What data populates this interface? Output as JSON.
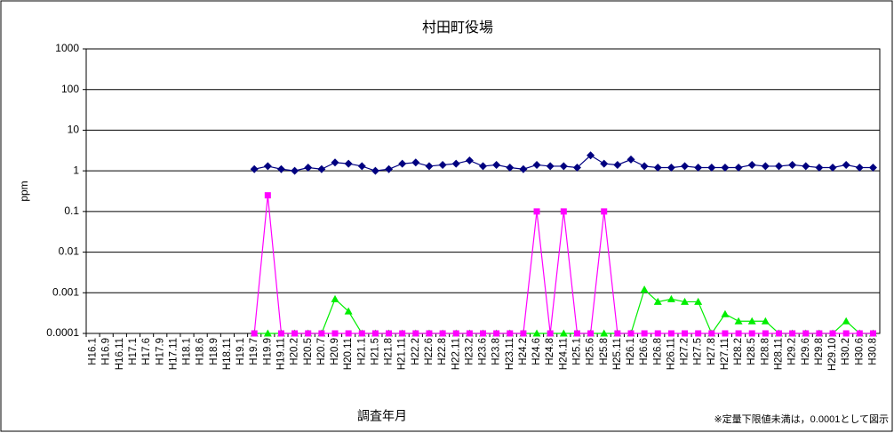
{
  "chart_data": {
    "type": "line",
    "title": "村田町役場",
    "y_label": "ppm",
    "x_label": "調査年月",
    "note": "※定量下限値未満は，0.0001として図示",
    "log_scale": true,
    "grid": true,
    "categories": [
      "H16.1",
      "H16.9",
      "H16.11",
      "H17.1",
      "H17.6",
      "H17.9",
      "H17.11",
      "H18.1",
      "H18.6",
      "H18.9",
      "H18.11",
      "H19.1",
      "H19.7",
      "H19.9",
      "H19.11",
      "H20.2",
      "H20.5",
      "H20.7",
      "H20.9",
      "H20.11",
      "H21.1",
      "H21.5",
      "H21.8",
      "H21.11",
      "H22.2",
      "H22.6",
      "H22.8",
      "H22.11",
      "H23.2",
      "H23.6",
      "H23.8",
      "H23.11",
      "H24.2",
      "H24.6",
      "H24.8",
      "H24.11",
      "H25.1",
      "H25.6",
      "H25.8",
      "H25.11",
      "H26.1",
      "H26.6",
      "H26.8",
      "H26.11",
      "H27.2",
      "H27.5",
      "H27.8",
      "H27.11",
      "H28.2",
      "H28.5",
      "H28.8",
      "H28.11",
      "H29.2",
      "H29.6",
      "H29.8",
      "H29.10",
      "H30.2",
      "H30.6",
      "H30.8"
    ],
    "ylim": [
      0.0001,
      1000
    ],
    "yticks": [
      0.0001,
      0.001,
      0.01,
      0.1,
      1,
      10,
      100,
      1000
    ],
    "series": [
      {
        "color": "#000080",
        "marker": "diamond",
        "values": [
          null,
          null,
          null,
          null,
          null,
          null,
          null,
          null,
          null,
          null,
          null,
          null,
          1.1,
          1.3,
          1.1,
          1.0,
          1.2,
          1.1,
          1.6,
          1.5,
          1.3,
          1.0,
          1.1,
          1.5,
          1.6,
          1.3,
          1.4,
          1.5,
          1.8,
          1.3,
          1.4,
          1.2,
          1.1,
          1.4,
          1.3,
          1.3,
          1.2,
          2.4,
          1.5,
          1.4,
          1.9,
          1.3,
          1.2,
          1.2,
          1.3,
          1.2,
          1.2,
          1.2,
          1.2,
          1.4,
          1.3,
          1.3,
          1.4,
          1.3,
          1.2,
          1.2,
          1.4,
          1.2,
          1.2
        ]
      },
      {
        "color": "#00ee00",
        "marker": "triangle",
        "values": [
          null,
          null,
          null,
          null,
          null,
          null,
          null,
          null,
          null,
          null,
          null,
          null,
          0.0001,
          0.0001,
          0.0001,
          0.0001,
          0.0001,
          0.0001,
          0.0007,
          0.00035,
          0.0001,
          0.0001,
          0.0001,
          0.0001,
          0.0001,
          0.0001,
          0.0001,
          0.0001,
          0.0001,
          0.0001,
          0.0001,
          0.0001,
          0.0001,
          0.0001,
          0.0001,
          0.0001,
          0.0001,
          0.0001,
          0.0001,
          0.0001,
          0.0001,
          0.0012,
          0.0006,
          0.0007,
          0.0006,
          0.0006,
          0.0001,
          0.0003,
          0.0002,
          0.0002,
          0.0002,
          0.0001,
          0.0001,
          0.0001,
          0.0001,
          0.0001,
          0.0002,
          0.0001,
          0.0001
        ]
      },
      {
        "color": "#ff00ff",
        "marker": "square",
        "values": [
          null,
          null,
          null,
          null,
          null,
          null,
          null,
          null,
          null,
          null,
          null,
          null,
          0.0001,
          0.25,
          0.0001,
          0.0001,
          0.0001,
          0.0001,
          0.0001,
          0.0001,
          0.0001,
          0.0001,
          0.0001,
          0.0001,
          0.0001,
          0.0001,
          0.0001,
          0.0001,
          0.0001,
          0.0001,
          0.0001,
          0.0001,
          0.0001,
          0.1,
          0.0001,
          0.1,
          0.0001,
          0.0001,
          0.1,
          0.0001,
          0.0001,
          0.0001,
          0.0001,
          0.0001,
          0.0001,
          0.0001,
          0.0001,
          0.0001,
          0.0001,
          0.0001,
          0.0001,
          0.0001,
          0.0001,
          0.0001,
          0.0001,
          0.0001,
          0.0001,
          0.0001,
          0.0001
        ]
      }
    ]
  }
}
